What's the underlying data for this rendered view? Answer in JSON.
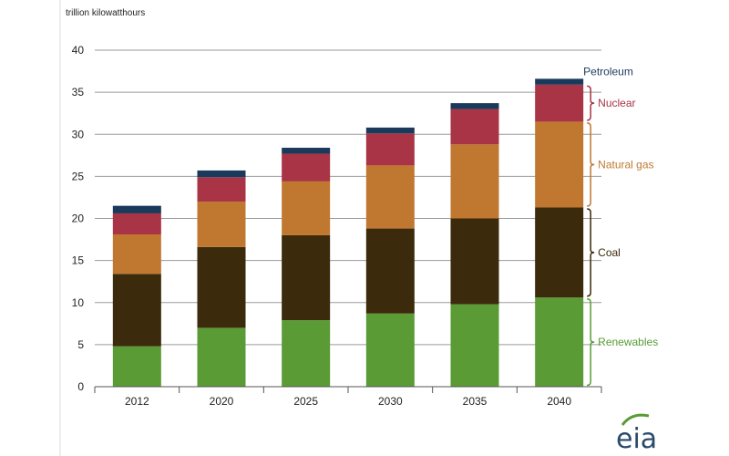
{
  "chart_data": {
    "type": "bar",
    "stacked": true,
    "ylabel": "trillion kilowatthours",
    "ylim": [
      0,
      40
    ],
    "yticks": [
      0,
      5,
      10,
      15,
      20,
      25,
      30,
      35,
      40
    ],
    "grid": true,
    "legend_placement": "right, beside final bar",
    "categories": [
      "2012",
      "2020",
      "2025",
      "2030",
      "2035",
      "2040"
    ],
    "series": [
      {
        "name": "Renewables",
        "color": "#5a9b36",
        "values": [
          4.8,
          7.0,
          7.9,
          8.7,
          9.8,
          10.6
        ]
      },
      {
        "name": "Coal",
        "color": "#3b2a0b",
        "values": [
          8.6,
          9.6,
          10.1,
          10.1,
          10.2,
          10.7
        ]
      },
      {
        "name": "Natural gas",
        "color": "#c07830",
        "values": [
          4.7,
          5.4,
          6.4,
          7.5,
          8.8,
          10.2
        ]
      },
      {
        "name": "Nuclear",
        "color": "#a83446",
        "values": [
          2.5,
          2.9,
          3.3,
          3.8,
          4.2,
          4.4
        ]
      },
      {
        "name": "Petroleum",
        "color": "#1a3a5c",
        "values": [
          0.9,
          0.8,
          0.7,
          0.7,
          0.7,
          0.7
        ]
      }
    ]
  },
  "logo": {
    "text": "eia",
    "accent": "#5a9b36"
  }
}
